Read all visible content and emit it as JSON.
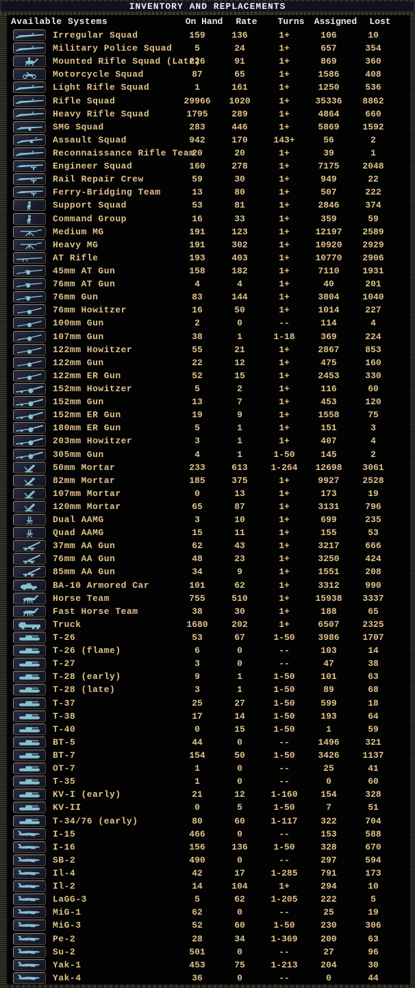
{
  "title": "INVENTORY AND REPLACEMENTS",
  "columns": [
    "Available Systems",
    "On Hand",
    "Rate",
    "Turns",
    "Assigned",
    "Lost"
  ],
  "colors": {
    "background": "#030303",
    "titlebar_bg": "#12121f",
    "header_text": "#e9e9ef",
    "data_text": "#dfc289",
    "icon_teal": "#85c3cc",
    "button_face": "#1c1c30",
    "button_border_light": "#908a72",
    "button_border_dark": "#524d3d"
  },
  "rows": [
    {
      "icon": "rifle",
      "name": "Irregular Squad",
      "onhand": "159",
      "rate": "136",
      "turns": "1+",
      "assigned": "106",
      "lost": "10"
    },
    {
      "icon": "rifle",
      "name": "Military Police Squad",
      "onhand": "5",
      "rate": "24",
      "turns": "1+",
      "assigned": "657",
      "lost": "354"
    },
    {
      "icon": "horse-rider",
      "name": "Mounted Rifle Squad (Late)",
      "onhand": "226",
      "rate": "91",
      "turns": "1+",
      "assigned": "869",
      "lost": "360"
    },
    {
      "icon": "motorcycle",
      "name": "Motorcycle Squad",
      "onhand": "87",
      "rate": "65",
      "turns": "1+",
      "assigned": "1586",
      "lost": "408"
    },
    {
      "icon": "rifle",
      "name": "Light Rifle Squad",
      "onhand": "1",
      "rate": "161",
      "turns": "1+",
      "assigned": "1250",
      "lost": "536"
    },
    {
      "icon": "rifle",
      "name": "Rifle Squad",
      "onhand": "29966",
      "rate": "1020",
      "turns": "1+",
      "assigned": "35336",
      "lost": "8862"
    },
    {
      "icon": "rifle",
      "name": "Heavy Rifle Squad",
      "onhand": "1795",
      "rate": "289",
      "turns": "1+",
      "assigned": "4864",
      "lost": "660"
    },
    {
      "icon": "smg",
      "name": "SMG Squad",
      "onhand": "283",
      "rate": "446",
      "turns": "1+",
      "assigned": "5869",
      "lost": "1592"
    },
    {
      "icon": "assault-rifle",
      "name": "Assault Squad",
      "onhand": "942",
      "rate": "170",
      "turns": "143+",
      "assigned": "56",
      "lost": "2"
    },
    {
      "icon": "rifle",
      "name": "Reconnaissance Rifle Team",
      "onhand": "20",
      "rate": "20",
      "turns": "1+",
      "assigned": "39",
      "lost": "1"
    },
    {
      "icon": "engineer",
      "name": "Engineer Squad",
      "onhand": "160",
      "rate": "278",
      "turns": "1+",
      "assigned": "7175",
      "lost": "2048"
    },
    {
      "icon": "engineer",
      "name": "Rail Repair Crew",
      "onhand": "59",
      "rate": "30",
      "turns": "1+",
      "assigned": "949",
      "lost": "22"
    },
    {
      "icon": "engineer",
      "name": "Ferry-Bridging Team",
      "onhand": "13",
      "rate": "80",
      "turns": "1+",
      "assigned": "507",
      "lost": "222"
    },
    {
      "icon": "person",
      "name": "Support Squad",
      "onhand": "53",
      "rate": "81",
      "turns": "1+",
      "assigned": "2846",
      "lost": "374"
    },
    {
      "icon": "person",
      "name": "Command Group",
      "onhand": "16",
      "rate": "33",
      "turns": "1+",
      "assigned": "359",
      "lost": "59"
    },
    {
      "icon": "mg",
      "name": "Medium MG",
      "onhand": "191",
      "rate": "123",
      "turns": "1+",
      "assigned": "12197",
      "lost": "2589"
    },
    {
      "icon": "mg",
      "name": "Heavy MG",
      "onhand": "191",
      "rate": "302",
      "turns": "1+",
      "assigned": "10920",
      "lost": "2929"
    },
    {
      "icon": "at-rifle",
      "name": "AT Rifle",
      "onhand": "193",
      "rate": "403",
      "turns": "1+",
      "assigned": "10770",
      "lost": "2906"
    },
    {
      "icon": "at-gun",
      "name": "45mm AT Gun",
      "onhand": "158",
      "rate": "182",
      "turns": "1+",
      "assigned": "7110",
      "lost": "1931"
    },
    {
      "icon": "at-gun",
      "name": "76mm AT Gun",
      "onhand": "4",
      "rate": "4",
      "turns": "1+",
      "assigned": "40",
      "lost": "201"
    },
    {
      "icon": "at-gun",
      "name": "76mm Gun",
      "onhand": "83",
      "rate": "144",
      "turns": "1+",
      "assigned": "3804",
      "lost": "1040"
    },
    {
      "icon": "field-gun",
      "name": "76mm Howitzer",
      "onhand": "16",
      "rate": "50",
      "turns": "1+",
      "assigned": "1014",
      "lost": "227"
    },
    {
      "icon": "field-gun",
      "name": "100mm Gun",
      "onhand": "2",
      "rate": "0",
      "turns": "--",
      "assigned": "114",
      "lost": "4"
    },
    {
      "icon": "field-gun",
      "name": "107mm Gun",
      "onhand": "38",
      "rate": "1",
      "turns": "1-18",
      "assigned": "369",
      "lost": "224"
    },
    {
      "icon": "field-gun",
      "name": "122mm Howitzer",
      "onhand": "55",
      "rate": "21",
      "turns": "1+",
      "assigned": "2867",
      "lost": "853"
    },
    {
      "icon": "field-gun",
      "name": "122mm Gun",
      "onhand": "22",
      "rate": "12",
      "turns": "1+",
      "assigned": "475",
      "lost": "160"
    },
    {
      "icon": "field-gun",
      "name": "122mm ER Gun",
      "onhand": "52",
      "rate": "15",
      "turns": "1+",
      "assigned": "2453",
      "lost": "330"
    },
    {
      "icon": "heavy-gun",
      "name": "152mm Howitzer",
      "onhand": "5",
      "rate": "2",
      "turns": "1+",
      "assigned": "116",
      "lost": "60"
    },
    {
      "icon": "heavy-gun",
      "name": "152mm Gun",
      "onhand": "13",
      "rate": "7",
      "turns": "1+",
      "assigned": "453",
      "lost": "120"
    },
    {
      "icon": "heavy-gun",
      "name": "152mm ER Gun",
      "onhand": "19",
      "rate": "9",
      "turns": "1+",
      "assigned": "1558",
      "lost": "75"
    },
    {
      "icon": "heavy-gun",
      "name": "180mm ER Gun",
      "onhand": "5",
      "rate": "1",
      "turns": "1+",
      "assigned": "151",
      "lost": "3"
    },
    {
      "icon": "heavy-gun",
      "name": "203mm Howitzer",
      "onhand": "3",
      "rate": "1",
      "turns": "1+",
      "assigned": "407",
      "lost": "4"
    },
    {
      "icon": "heavy-gun",
      "name": "305mm Gun",
      "onhand": "4",
      "rate": "1",
      "turns": "1-50",
      "assigned": "145",
      "lost": "2"
    },
    {
      "icon": "mortar",
      "name": "50mm Mortar",
      "onhand": "233",
      "rate": "613",
      "turns": "1-264",
      "assigned": "12698",
      "lost": "3061"
    },
    {
      "icon": "mortar",
      "name": "82mm Mortar",
      "onhand": "185",
      "rate": "375",
      "turns": "1+",
      "assigned": "9927",
      "lost": "2528"
    },
    {
      "icon": "mortar",
      "name": "107mm Mortar",
      "onhand": "0",
      "rate": "13",
      "turns": "1+",
      "assigned": "173",
      "lost": "19"
    },
    {
      "icon": "mortar",
      "name": "120mm Mortar",
      "onhand": "65",
      "rate": "87",
      "turns": "1+",
      "assigned": "3131",
      "lost": "796"
    },
    {
      "icon": "aamg",
      "name": "Dual AAMG",
      "onhand": "3",
      "rate": "10",
      "turns": "1+",
      "assigned": "699",
      "lost": "235"
    },
    {
      "icon": "aamg",
      "name": "Quad AAMG",
      "onhand": "15",
      "rate": "11",
      "turns": "1+",
      "assigned": "155",
      "lost": "53"
    },
    {
      "icon": "aa-gun",
      "name": "37mm AA Gun",
      "onhand": "62",
      "rate": "43",
      "turns": "1+",
      "assigned": "3217",
      "lost": "666"
    },
    {
      "icon": "aa-gun",
      "name": "76mm AA Gun",
      "onhand": "48",
      "rate": "23",
      "turns": "1+",
      "assigned": "3250",
      "lost": "424"
    },
    {
      "icon": "aa-gun",
      "name": "85mm AA Gun",
      "onhand": "34",
      "rate": "9",
      "turns": "1+",
      "assigned": "1551",
      "lost": "208"
    },
    {
      "icon": "armored-car",
      "name": "BA-10 Armored Car",
      "onhand": "101",
      "rate": "62",
      "turns": "1+",
      "assigned": "3312",
      "lost": "990"
    },
    {
      "icon": "horse",
      "name": "Horse Team",
      "onhand": "755",
      "rate": "510",
      "turns": "1+",
      "assigned": "15938",
      "lost": "3337"
    },
    {
      "icon": "horse",
      "name": "Fast Horse Team",
      "onhand": "38",
      "rate": "30",
      "turns": "1+",
      "assigned": "188",
      "lost": "65"
    },
    {
      "icon": "truck",
      "name": "Truck",
      "onhand": "1680",
      "rate": "202",
      "turns": "1+",
      "assigned": "6507",
      "lost": "2325"
    },
    {
      "icon": "tank",
      "name": "T-26",
      "onhand": "53",
      "rate": "67",
      "turns": "1-50",
      "assigned": "3986",
      "lost": "1707"
    },
    {
      "icon": "tank",
      "name": "T-26 (flame)",
      "onhand": "6",
      "rate": "0",
      "turns": "--",
      "assigned": "103",
      "lost": "14"
    },
    {
      "icon": "tank",
      "name": "T-27",
      "onhand": "3",
      "rate": "0",
      "turns": "--",
      "assigned": "47",
      "lost": "38"
    },
    {
      "icon": "tank",
      "name": "T-28 (early)",
      "onhand": "9",
      "rate": "1",
      "turns": "1-50",
      "assigned": "101",
      "lost": "63"
    },
    {
      "icon": "tank",
      "name": "T-28 (late)",
      "onhand": "3",
      "rate": "1",
      "turns": "1-50",
      "assigned": "89",
      "lost": "68"
    },
    {
      "icon": "tank",
      "name": "T-37",
      "onhand": "25",
      "rate": "27",
      "turns": "1-50",
      "assigned": "599",
      "lost": "18"
    },
    {
      "icon": "tank",
      "name": "T-38",
      "onhand": "17",
      "rate": "14",
      "turns": "1-50",
      "assigned": "193",
      "lost": "64"
    },
    {
      "icon": "tank",
      "name": "T-40",
      "onhand": "0",
      "rate": "15",
      "turns": "1-50",
      "assigned": "1",
      "lost": "59"
    },
    {
      "icon": "tank",
      "name": "BT-5",
      "onhand": "44",
      "rate": "0",
      "turns": "--",
      "assigned": "1496",
      "lost": "321"
    },
    {
      "icon": "tank",
      "name": "BT-7",
      "onhand": "154",
      "rate": "50",
      "turns": "1-50",
      "assigned": "3426",
      "lost": "1137"
    },
    {
      "icon": "tank",
      "name": "OT-7",
      "onhand": "1",
      "rate": "0",
      "turns": "--",
      "assigned": "25",
      "lost": "41"
    },
    {
      "icon": "tank",
      "name": "T-35",
      "onhand": "1",
      "rate": "0",
      "turns": "--",
      "assigned": "0",
      "lost": "60"
    },
    {
      "icon": "tank",
      "name": "KV-I (early)",
      "onhand": "21",
      "rate": "12",
      "turns": "1-160",
      "assigned": "154",
      "lost": "328"
    },
    {
      "icon": "tank",
      "name": "KV-II",
      "onhand": "0",
      "rate": "5",
      "turns": "1-50",
      "assigned": "7",
      "lost": "51"
    },
    {
      "icon": "tank",
      "name": "T-34/76 (early)",
      "onhand": "80",
      "rate": "60",
      "turns": "1-117",
      "assigned": "322",
      "lost": "704"
    },
    {
      "icon": "plane",
      "name": "I-15",
      "onhand": "466",
      "rate": "0",
      "turns": "--",
      "assigned": "153",
      "lost": "588"
    },
    {
      "icon": "plane",
      "name": "I-16",
      "onhand": "156",
      "rate": "136",
      "turns": "1-50",
      "assigned": "328",
      "lost": "670"
    },
    {
      "icon": "plane",
      "name": "SB-2",
      "onhand": "490",
      "rate": "0",
      "turns": "--",
      "assigned": "297",
      "lost": "594"
    },
    {
      "icon": "plane",
      "name": "Il-4",
      "onhand": "42",
      "rate": "17",
      "turns": "1-285",
      "assigned": "791",
      "lost": "173"
    },
    {
      "icon": "plane",
      "name": "Il-2",
      "onhand": "14",
      "rate": "104",
      "turns": "1+",
      "assigned": "294",
      "lost": "10"
    },
    {
      "icon": "plane",
      "name": "LaGG-3",
      "onhand": "5",
      "rate": "62",
      "turns": "1-205",
      "assigned": "222",
      "lost": "5"
    },
    {
      "icon": "plane",
      "name": "MiG-1",
      "onhand": "62",
      "rate": "0",
      "turns": "--",
      "assigned": "25",
      "lost": "19"
    },
    {
      "icon": "plane",
      "name": "MiG-3",
      "onhand": "52",
      "rate": "60",
      "turns": "1-50",
      "assigned": "230",
      "lost": "306"
    },
    {
      "icon": "plane",
      "name": "Pe-2",
      "onhand": "28",
      "rate": "34",
      "turns": "1-369",
      "assigned": "200",
      "lost": "63"
    },
    {
      "icon": "plane",
      "name": "Su-2",
      "onhand": "501",
      "rate": "0",
      "turns": "--",
      "assigned": "27",
      "lost": "96"
    },
    {
      "icon": "plane",
      "name": "Yak-1",
      "onhand": "453",
      "rate": "75",
      "turns": "1-213",
      "assigned": "204",
      "lost": "30"
    },
    {
      "icon": "plane",
      "name": "Yak-4",
      "onhand": "36",
      "rate": "0",
      "turns": "--",
      "assigned": "0",
      "lost": "44"
    }
  ]
}
